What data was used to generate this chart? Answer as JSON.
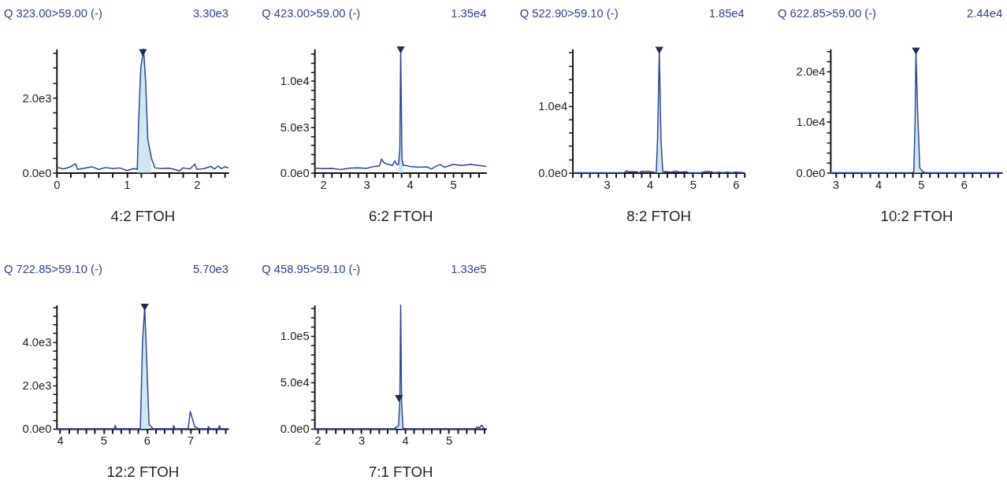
{
  "chart_data": [
    {
      "type": "line",
      "title": "Q 323.00>59.00 (-)",
      "subtitle": "3.30e3",
      "xlabel": "4:2 FTOH",
      "xlim": [
        0,
        2.45
      ],
      "xticks": [
        0,
        {
          "value": 0.2,
          "label": null
        },
        {
          "value": 0.4,
          "label": null
        },
        {
          "value": 0.6,
          "label": null
        },
        {
          "value": 0.8,
          "label": null
        },
        1,
        {
          "value": 1.2,
          "label": null
        },
        {
          "value": 1.4,
          "label": null
        },
        {
          "value": 1.6,
          "label": null
        },
        {
          "value": 1.8,
          "label": null
        },
        2,
        {
          "value": 2.2,
          "label": null
        },
        {
          "value": 2.4,
          "label": null
        }
      ],
      "ylim": [
        0,
        3300
      ],
      "yticks": [
        {
          "value": 0,
          "label": "0.0e0"
        },
        {
          "value": 400,
          "label": null
        },
        {
          "value": 800,
          "label": null
        },
        {
          "value": 1200,
          "label": null
        },
        {
          "value": 1600,
          "label": null
        },
        {
          "value": 2000,
          "label": "2.0e3"
        },
        {
          "value": 2400,
          "label": null
        },
        {
          "value": 2800,
          "label": null
        },
        {
          "value": 3200,
          "label": null
        }
      ],
      "series": [
        {
          "type": "area",
          "color": "#cde8f0",
          "x": [
            1.15,
            1.17,
            1.2,
            1.24,
            1.27,
            1.3,
            1.35
          ],
          "values": [
            90,
            1400,
            2800,
            3300,
            2400,
            900,
            400
          ]
        },
        {
          "color": "#2e4393",
          "x": [
            0,
            0.1,
            0.2,
            0.27,
            0.3,
            0.4,
            0.5,
            0.6,
            0.7,
            0.8,
            0.9,
            1.0,
            1.1,
            1.15,
            1.17,
            1.2,
            1.24,
            1.27,
            1.3,
            1.35,
            1.4,
            1.5,
            1.6,
            1.7,
            1.75,
            1.8,
            1.9,
            1.97,
            2.0,
            2.1,
            2.2,
            2.25,
            2.3,
            2.35,
            2.4,
            2.45
          ],
          "values": [
            150,
            100,
            160,
            240,
            90,
            120,
            160,
            90,
            140,
            110,
            130,
            60,
            110,
            90,
            1400,
            2800,
            3300,
            2400,
            900,
            400,
            130,
            110,
            120,
            80,
            50,
            130,
            100,
            230,
            90,
            110,
            170,
            100,
            180,
            110,
            160,
            130
          ]
        },
        {
          "type": "scatter",
          "marker": "triangle",
          "color": "#1f2a5a",
          "x": [
            1.23
          ],
          "values": [
            3200
          ]
        }
      ]
    },
    {
      "type": "line",
      "title": "Q 423.00>59.00 (-)",
      "subtitle": "1.35e4",
      "xlabel": "6:2 FTOH",
      "xlim": [
        1.8,
        5.77
      ],
      "xticks": [
        {
          "value": 1.8,
          "label": null
        },
        2,
        {
          "value": 2.2,
          "label": null
        },
        {
          "value": 2.4,
          "label": null
        },
        {
          "value": 2.6,
          "label": null
        },
        {
          "value": 2.8,
          "label": null
        },
        3,
        {
          "value": 3.2,
          "label": null
        },
        {
          "value": 3.4,
          "label": null
        },
        {
          "value": 3.6,
          "label": null
        },
        {
          "value": 3.8,
          "label": null
        },
        4,
        {
          "value": 4.2,
          "label": null
        },
        {
          "value": 4.4,
          "label": null
        },
        {
          "value": 4.6,
          "label": null
        },
        {
          "value": 4.8,
          "label": null
        },
        5,
        {
          "value": 5.2,
          "label": null
        },
        {
          "value": 5.4,
          "label": null
        },
        {
          "value": 5.6,
          "label": null
        }
      ],
      "ylim": [
        0,
        13500
      ],
      "yticks": [
        {
          "value": 0,
          "label": "0.0e0"
        },
        {
          "value": 1000,
          "label": null
        },
        {
          "value": 2000,
          "label": null
        },
        {
          "value": 3000,
          "label": null
        },
        {
          "value": 4000,
          "label": null
        },
        {
          "value": 5000,
          "label": "5.0e3"
        },
        {
          "value": 6000,
          "label": null
        },
        {
          "value": 7000,
          "label": null
        },
        {
          "value": 8000,
          "label": null
        },
        {
          "value": 9000,
          "label": null
        },
        {
          "value": 10000,
          "label": "1.0e4"
        },
        {
          "value": 11000,
          "label": null
        },
        {
          "value": 12000,
          "label": null
        },
        {
          "value": 13000,
          "label": null
        }
      ],
      "series": [
        {
          "type": "area",
          "color": "#cde8f0",
          "x": [
            3.74,
            3.77,
            3.79,
            3.82,
            3.85
          ],
          "values": [
            900,
            2500,
            13500,
            1500,
            800
          ]
        },
        {
          "color": "#2e4393",
          "x": [
            1.8,
            2.0,
            2.2,
            2.4,
            2.6,
            2.8,
            3.0,
            3.1,
            3.2,
            3.3,
            3.35,
            3.4,
            3.5,
            3.6,
            3.65,
            3.7,
            3.74,
            3.77,
            3.79,
            3.82,
            3.85,
            3.9,
            4.0,
            4.2,
            4.4,
            4.5,
            4.6,
            4.7,
            4.8,
            5.0,
            5.2,
            5.4,
            5.6,
            5.77
          ],
          "values": [
            500,
            450,
            480,
            350,
            500,
            550,
            480,
            600,
            700,
            750,
            1500,
            1100,
            900,
            800,
            1300,
            900,
            900,
            2500,
            13500,
            1500,
            800,
            800,
            700,
            600,
            650,
            400,
            700,
            900,
            600,
            900,
            800,
            900,
            800,
            700
          ]
        },
        {
          "type": "scatter",
          "marker": "triangle",
          "color": "#1f2a5a",
          "x": [
            3.79
          ],
          "values": [
            13400
          ]
        }
      ]
    },
    {
      "type": "line",
      "title": "Q 522.90>59.10 (-)",
      "subtitle": "1.85e4",
      "xlabel": "8:2 FTOH",
      "xlim": [
        2.2,
        6.2
      ],
      "xticks": [
        {
          "value": 2.2,
          "label": null
        },
        {
          "value": 2.4,
          "label": null
        },
        {
          "value": 2.6,
          "label": null
        },
        {
          "value": 2.8,
          "label": null
        },
        3,
        {
          "value": 3.2,
          "label": null
        },
        {
          "value": 3.4,
          "label": null
        },
        {
          "value": 3.6,
          "label": null
        },
        {
          "value": 3.8,
          "label": null
        },
        4,
        {
          "value": 4.2,
          "label": null
        },
        {
          "value": 4.4,
          "label": null
        },
        {
          "value": 4.6,
          "label": null
        },
        {
          "value": 4.8,
          "label": null
        },
        5,
        {
          "value": 5.2,
          "label": null
        },
        {
          "value": 5.4,
          "label": null
        },
        {
          "value": 5.6,
          "label": null
        },
        {
          "value": 5.8,
          "label": null
        },
        6,
        {
          "value": 6.2,
          "label": null
        }
      ],
      "ylim": [
        0,
        18500
      ],
      "yticks": [
        {
          "value": 0,
          "label": "0.0e0"
        },
        {
          "value": 2000,
          "label": null
        },
        {
          "value": 4000,
          "label": null
        },
        {
          "value": 6000,
          "label": null
        },
        {
          "value": 8000,
          "label": null
        },
        {
          "value": 10000,
          "label": "1.0e4"
        },
        {
          "value": 12000,
          "label": null
        },
        {
          "value": 14000,
          "label": null
        },
        {
          "value": 16000,
          "label": null
        },
        {
          "value": 18000,
          "label": null
        }
      ],
      "series": [
        {
          "type": "area",
          "color": "#cde8f0",
          "x": [
            4.15,
            4.18,
            4.22,
            4.26,
            4.3
          ],
          "values": [
            0,
            5000,
            18300,
            5000,
            200
          ]
        },
        {
          "color": "#2e4393",
          "x": [
            2.2,
            3.4,
            3.45,
            3.5,
            3.7,
            3.75,
            3.8,
            4.0,
            4.15,
            4.18,
            4.22,
            4.26,
            4.3,
            4.5,
            4.6,
            4.7,
            4.85,
            4.9,
            5.2,
            5.3,
            5.4,
            5.5,
            5.6,
            5.7,
            5.8,
            5.9,
            6.0,
            6.2
          ],
          "values": [
            0,
            0,
            300,
            150,
            150,
            0,
            200,
            200,
            0,
            5000,
            18300,
            5000,
            200,
            100,
            250,
            100,
            150,
            0,
            0,
            200,
            200,
            0,
            100,
            0,
            100,
            0,
            100,
            0
          ]
        },
        {
          "type": "scatter",
          "marker": "triangle",
          "color": "#1f2a5a",
          "x": [
            4.22
          ],
          "values": [
            18300
          ]
        }
      ]
    },
    {
      "type": "line",
      "title": "Q 622.85>59.00 (-)",
      "subtitle": "2.44e4",
      "xlabel": "10:2 FTOH",
      "xlim": [
        2.88,
        6.9
      ],
      "xticks": [
        3,
        {
          "value": 3.2,
          "label": null
        },
        {
          "value": 3.4,
          "label": null
        },
        {
          "value": 3.6,
          "label": null
        },
        {
          "value": 3.8,
          "label": null
        },
        4,
        {
          "value": 4.2,
          "label": null
        },
        {
          "value": 4.4,
          "label": null
        },
        {
          "value": 4.6,
          "label": null
        },
        {
          "value": 4.8,
          "label": null
        },
        5,
        {
          "value": 5.2,
          "label": null
        },
        {
          "value": 5.4,
          "label": null
        },
        {
          "value": 5.6,
          "label": null
        },
        {
          "value": 5.8,
          "label": null
        },
        6,
        {
          "value": 6.2,
          "label": null
        },
        {
          "value": 6.4,
          "label": null
        },
        {
          "value": 6.6,
          "label": null
        },
        {
          "value": 6.8,
          "label": null
        }
      ],
      "ylim": [
        0,
        24400
      ],
      "yticks": [
        {
          "value": 0,
          "label": "0.0e0"
        },
        {
          "value": 2000,
          "label": null
        },
        {
          "value": 4000,
          "label": null
        },
        {
          "value": 6000,
          "label": null
        },
        {
          "value": 8000,
          "label": null
        },
        {
          "value": 10000,
          "label": "1.0e4"
        },
        {
          "value": 12000,
          "label": null
        },
        {
          "value": 14000,
          "label": null
        },
        {
          "value": 16000,
          "label": null
        },
        {
          "value": 18000,
          "label": null
        },
        {
          "value": 20000,
          "label": "2.0e4"
        },
        {
          "value": 22000,
          "label": null
        },
        {
          "value": 24000,
          "label": null
        }
      ],
      "series": [
        {
          "type": "area",
          "color": "#cde8f0",
          "x": [
            4.83,
            4.86,
            4.88,
            4.92,
            4.97,
            5.03
          ],
          "values": [
            300,
            10000,
            24000,
            12000,
            1000,
            300
          ]
        },
        {
          "color": "#2e4393",
          "x": [
            2.88,
            4.8,
            4.83,
            4.86,
            4.88,
            4.92,
            4.97,
            5.03,
            5.1,
            6.9
          ],
          "values": [
            0,
            0,
            300,
            10000,
            24000,
            12000,
            1000,
            300,
            0,
            0
          ]
        },
        {
          "type": "scatter",
          "marker": "triangle",
          "color": "#1f2a5a",
          "x": [
            4.88
          ],
          "values": [
            24000
          ]
        }
      ]
    },
    {
      "type": "line",
      "title": "Q 722.85>59.10 (-)",
      "subtitle": "5.70e3",
      "xlabel": "12:2 FTOH",
      "xlim": [
        3.92,
        7.88
      ],
      "xticks": [
        4,
        {
          "value": 4.2,
          "label": null
        },
        {
          "value": 4.4,
          "label": null
        },
        {
          "value": 4.6,
          "label": null
        },
        {
          "value": 4.8,
          "label": null
        },
        5,
        {
          "value": 5.2,
          "label": null
        },
        {
          "value": 5.4,
          "label": null
        },
        {
          "value": 5.6,
          "label": null
        },
        {
          "value": 5.8,
          "label": null
        },
        6,
        {
          "value": 6.2,
          "label": null
        },
        {
          "value": 6.4,
          "label": null
        },
        {
          "value": 6.6,
          "label": null
        },
        {
          "value": 6.8,
          "label": null
        },
        7,
        {
          "value": 7.2,
          "label": null
        },
        {
          "value": 7.4,
          "label": null
        },
        {
          "value": 7.6,
          "label": null
        },
        {
          "value": 7.8,
          "label": null
        }
      ],
      "ylim": [
        0,
        5700
      ],
      "yticks": [
        {
          "value": 0,
          "label": "0.0e0"
        },
        {
          "value": 400,
          "label": null
        },
        {
          "value": 800,
          "label": null
        },
        {
          "value": 1200,
          "label": null
        },
        {
          "value": 1600,
          "label": null
        },
        {
          "value": 2000,
          "label": "2.0e3"
        },
        {
          "value": 2400,
          "label": null
        },
        {
          "value": 2800,
          "label": null
        },
        {
          "value": 3200,
          "label": null
        },
        {
          "value": 3600,
          "label": null
        },
        {
          "value": 4000,
          "label": "4.0e3"
        },
        {
          "value": 4400,
          "label": null
        },
        {
          "value": 4800,
          "label": null
        },
        {
          "value": 5200,
          "label": null
        },
        {
          "value": 5600,
          "label": null
        }
      ],
      "series": [
        {
          "type": "area",
          "color": "#cde8f0",
          "x": [
            5.85,
            5.9,
            5.95,
            6.0,
            6.05
          ],
          "values": [
            0,
            4000,
            5600,
            3000,
            200
          ]
        },
        {
          "color": "#2e4393",
          "x": [
            3.92,
            5.25,
            5.27,
            5.3,
            5.85,
            5.9,
            5.95,
            6.0,
            6.05,
            6.1,
            6.15,
            6.6,
            6.62,
            6.65,
            6.95,
            7.0,
            7.1,
            7.2,
            7.4,
            7.42,
            7.45,
            7.65,
            7.67,
            7.7,
            7.88
          ],
          "values": [
            0,
            0,
            150,
            0,
            0,
            4000,
            5600,
            3000,
            200,
            100,
            0,
            0,
            150,
            0,
            0,
            800,
            100,
            0,
            0,
            100,
            0,
            0,
            150,
            0,
            0
          ]
        },
        {
          "type": "scatter",
          "marker": "triangle",
          "color": "#1f2a5a",
          "x": [
            5.95
          ],
          "values": [
            5600
          ]
        }
      ]
    },
    {
      "type": "line",
      "title": "Q 458.95>59.10 (-)",
      "subtitle": "1.33e5",
      "xlabel": "7:1 FTOH",
      "xlim": [
        1.93,
        5.86
      ],
      "xticks": [
        2,
        {
          "value": 2.2,
          "label": null
        },
        {
          "value": 2.4,
          "label": null
        },
        {
          "value": 2.6,
          "label": null
        },
        {
          "value": 2.8,
          "label": null
        },
        3,
        {
          "value": 3.2,
          "label": null
        },
        {
          "value": 3.4,
          "label": null
        },
        {
          "value": 3.6,
          "label": null
        },
        {
          "value": 3.8,
          "label": null
        },
        4,
        {
          "value": 4.2,
          "label": null
        },
        {
          "value": 4.4,
          "label": null
        },
        {
          "value": 4.6,
          "label": null
        },
        {
          "value": 4.8,
          "label": null
        },
        5,
        {
          "value": 5.2,
          "label": null
        },
        {
          "value": 5.4,
          "label": null
        },
        {
          "value": 5.6,
          "label": null
        },
        {
          "value": 5.8,
          "label": null
        }
      ],
      "ylim": [
        0,
        133000
      ],
      "yticks": [
        {
          "value": 0,
          "label": "0.0e0"
        },
        {
          "value": 10000,
          "label": null
        },
        {
          "value": 20000,
          "label": null
        },
        {
          "value": 30000,
          "label": null
        },
        {
          "value": 40000,
          "label": null
        },
        {
          "value": 50000,
          "label": "5.0e4"
        },
        {
          "value": 60000,
          "label": null
        },
        {
          "value": 70000,
          "label": null
        },
        {
          "value": 80000,
          "label": null
        },
        {
          "value": 90000,
          "label": null
        },
        {
          "value": 100000,
          "label": "1.0e5"
        },
        {
          "value": 110000,
          "label": null
        },
        {
          "value": 120000,
          "label": null
        },
        {
          "value": 130000,
          "label": null
        }
      ],
      "series": [
        {
          "type": "area",
          "color": "#cde8f0",
          "x": [
            3.8,
            3.85,
            3.88,
            3.9,
            3.92,
            3.95
          ],
          "values": [
            2000,
            3000,
            30000,
            133000,
            30000,
            1000
          ]
        },
        {
          "color": "#2e4393",
          "x": [
            1.93,
            3.75,
            3.8,
            3.85,
            3.88,
            3.9,
            3.92,
            3.95,
            4.0,
            5.6,
            5.65,
            5.7,
            5.75,
            5.8,
            5.86
          ],
          "values": [
            0,
            0,
            2000,
            3000,
            30000,
            133000,
            30000,
            1000,
            0,
            0,
            2000,
            1000,
            4000,
            500,
            0
          ]
        },
        {
          "type": "scatter",
          "marker": "triangle",
          "color": "#1f2a5a",
          "x": [
            3.86
          ],
          "values": [
            32500
          ]
        }
      ]
    }
  ]
}
